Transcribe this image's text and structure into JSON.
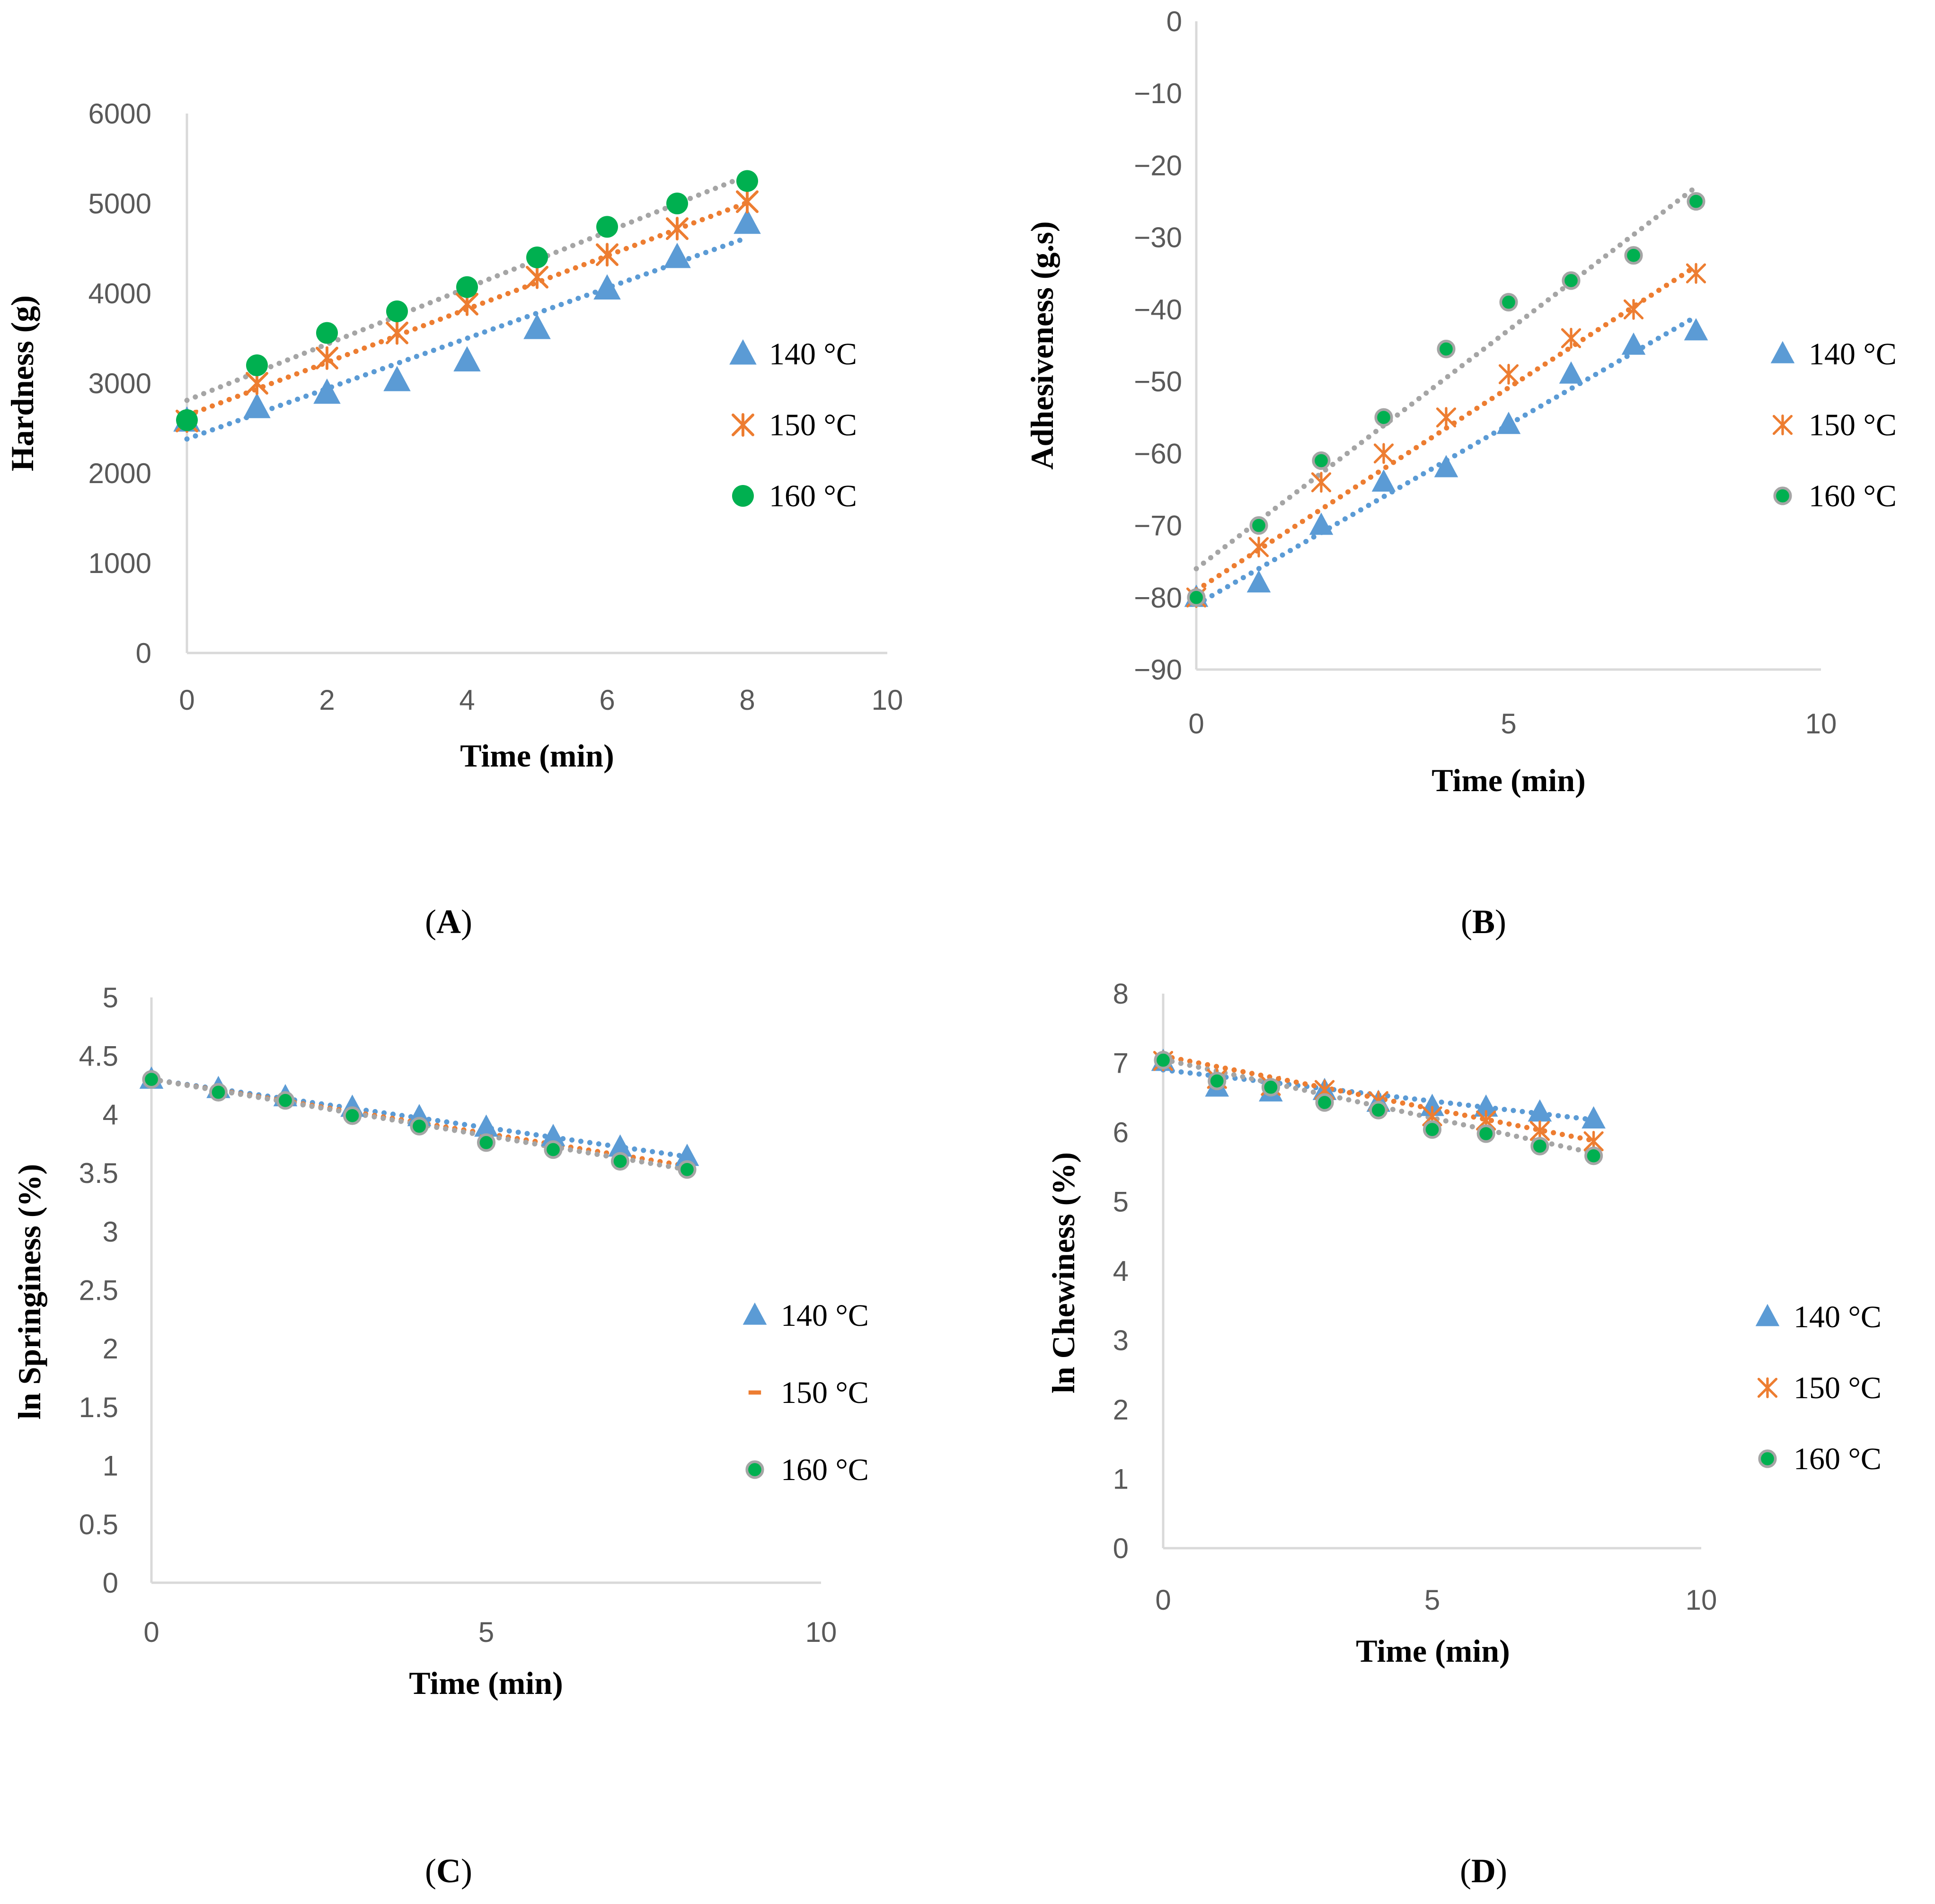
{
  "colors": {
    "s140": "#5B9BD5",
    "s150": "#ED7D31",
    "s160": "#00B050",
    "s160_trend": "#A5A5A5",
    "axis": "#D9D9D9"
  },
  "chart_data": [
    {
      "id": "A",
      "caption": "A",
      "type": "scatter",
      "ylabel": "Hardness (g)",
      "xlabel": "Time (min)",
      "xlim": [
        0,
        10
      ],
      "ylim": [
        0,
        6000
      ],
      "xticks": [
        0,
        2,
        4,
        6,
        8,
        10
      ],
      "yticks": [
        0,
        1000,
        2000,
        3000,
        4000,
        5000,
        6000
      ],
      "xtick_labels": [
        "0",
        "2",
        "4",
        "6",
        "8",
        "10"
      ],
      "ytick_labels": [
        "0",
        "1000",
        "2000",
        "3000",
        "4000",
        "5000",
        "6000"
      ],
      "x": [
        0,
        1,
        2,
        3,
        4,
        5,
        6,
        7,
        8
      ],
      "series": [
        {
          "name": "140 °C",
          "marker": "triangle",
          "values": [
            2580,
            2730,
            2890,
            3030,
            3250,
            3610,
            4050,
            4400,
            4780
          ],
          "trend": [
            2380,
            4620
          ]
        },
        {
          "name": "150 °C",
          "marker": "x",
          "values": [
            2580,
            3000,
            3280,
            3560,
            3880,
            4180,
            4430,
            4720,
            5020
          ],
          "trend": [
            2640,
            5010
          ]
        },
        {
          "name": "160 °C",
          "marker": "circle",
          "values": [
            2590,
            3200,
            3560,
            3800,
            4070,
            4400,
            4740,
            5000,
            5250
          ],
          "trend": [
            2810,
            5310
          ]
        }
      ]
    },
    {
      "id": "B",
      "caption": "B",
      "type": "scatter",
      "ylabel": "Adhesiveness (g.s)",
      "xlabel": "Time (min)",
      "xlim": [
        0,
        10
      ],
      "ylim": [
        -90,
        0
      ],
      "xticks": [
        0,
        5,
        10
      ],
      "yticks": [
        -90,
        -80,
        -70,
        -60,
        -50,
        -40,
        -30,
        -20,
        -10,
        0
      ],
      "xtick_labels": [
        "0",
        "5",
        "10"
      ],
      "ytick_labels": [
        "−90",
        "−80",
        "−70",
        "−60",
        "−50",
        "−40",
        "−30",
        "−20",
        "−10",
        "0"
      ],
      "x": [
        0,
        1,
        2,
        3,
        4,
        5,
        6,
        7,
        8
      ],
      "series": [
        {
          "name": "140 °C",
          "marker": "triangle",
          "values": [
            -80,
            -78,
            -70,
            -64,
            -62,
            -56,
            -49,
            -45,
            -43
          ],
          "trend": [
            -81,
            -41
          ]
        },
        {
          "name": "150 °C",
          "marker": "x",
          "values": [
            -80,
            -73,
            -64,
            -60,
            -55,
            -49,
            -44,
            -40,
            -35
          ],
          "trend": [
            -79,
            -34
          ]
        },
        {
          "name": "160 °C",
          "marker": "circle-ring",
          "values": [
            -80,
            -70,
            -61,
            -55,
            -45.5,
            -39,
            -36,
            -32.5,
            -25
          ],
          "trend": [
            -76,
            -23
          ]
        }
      ]
    },
    {
      "id": "C",
      "caption": "C",
      "type": "scatter",
      "ylabel": "ln Springiness (%)",
      "xlabel": "Time (min)",
      "xlim": [
        0,
        10
      ],
      "ylim": [
        0,
        5
      ],
      "xticks": [
        0,
        5,
        10
      ],
      "yticks": [
        0,
        0.5,
        1,
        1.5,
        2,
        2.5,
        3,
        3.5,
        4,
        4.5,
        5
      ],
      "xtick_labels": [
        "0",
        "5",
        "10"
      ],
      "ytick_labels": [
        "0",
        "0.5",
        "1",
        "1.5",
        "2",
        "2.5",
        "3",
        "3.5",
        "4",
        "4.5",
        "5"
      ],
      "x": [
        0,
        1,
        2,
        3,
        4,
        5,
        6,
        7,
        8
      ],
      "series": [
        {
          "name": "140 °C",
          "marker": "triangle",
          "values": [
            4.3,
            4.22,
            4.15,
            4.06,
            3.98,
            3.89,
            3.81,
            3.72,
            3.64
          ],
          "trend": [
            4.3,
            3.64
          ]
        },
        {
          "name": "150 °C",
          "marker": "dash",
          "values": [
            4.29,
            4.2,
            4.11,
            4.0,
            3.92,
            3.81,
            3.74,
            3.64,
            3.56
          ],
          "trend": [
            4.3,
            3.56
          ]
        },
        {
          "name": "160 °C",
          "marker": "circle-ring",
          "values": [
            4.3,
            4.19,
            4.12,
            3.99,
            3.9,
            3.76,
            3.7,
            3.6,
            3.53
          ],
          "trend": [
            4.3,
            3.53
          ]
        }
      ]
    },
    {
      "id": "D",
      "caption": "D",
      "type": "scatter",
      "ylabel": "ln Chewiness (%)",
      "xlabel": "Time (min)",
      "xlim": [
        0,
        10
      ],
      "ylim": [
        0,
        8
      ],
      "xticks": [
        0,
        5,
        10
      ],
      "yticks": [
        0,
        1,
        2,
        3,
        4,
        5,
        6,
        7,
        8
      ],
      "xtick_labels": [
        "0",
        "5",
        "10"
      ],
      "ytick_labels": [
        "0",
        "1",
        "2",
        "3",
        "4",
        "5",
        "6",
        "7",
        "8"
      ],
      "x": [
        0,
        1,
        2,
        3,
        4,
        5,
        6,
        7,
        8
      ],
      "series": [
        {
          "name": "140 °C",
          "marker": "triangle",
          "values": [
            7.02,
            6.65,
            6.58,
            6.6,
            6.43,
            6.37,
            6.36,
            6.29,
            6.19
          ],
          "trend": [
            6.9,
            6.18
          ]
        },
        {
          "name": "150 °C",
          "marker": "x",
          "values": [
            7.03,
            6.77,
            6.67,
            6.61,
            6.45,
            6.23,
            6.17,
            6.02,
            5.87
          ],
          "trend": [
            7.1,
            5.88
          ]
        },
        {
          "name": "160 °C",
          "marker": "circle-ring",
          "values": [
            7.04,
            6.74,
            6.65,
            6.43,
            6.32,
            6.04,
            5.98,
            5.8,
            5.66
          ],
          "trend": [
            7.05,
            5.7
          ]
        }
      ]
    }
  ]
}
